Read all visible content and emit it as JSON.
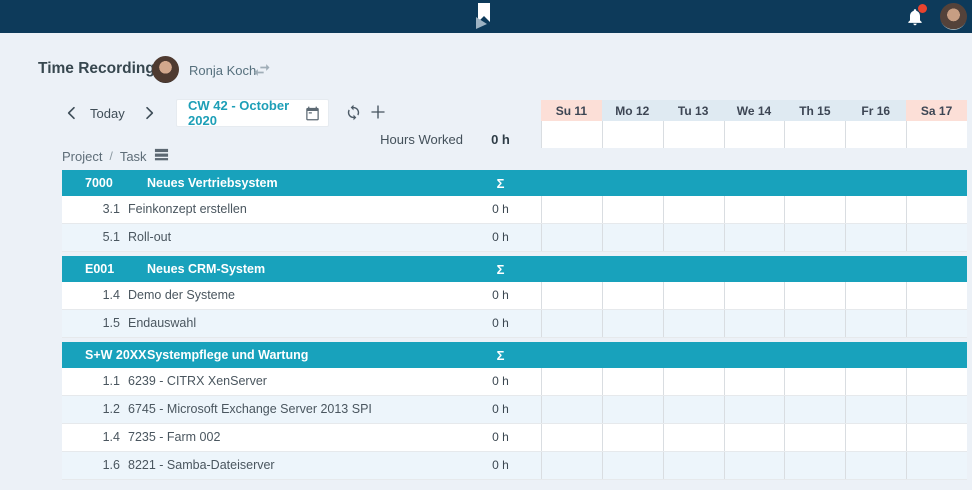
{
  "colors": {
    "topbar_bg": "#0d3a5a",
    "page_bg": "#ecf1f7",
    "accent_teal": "#18a2bc",
    "week_text_teal": "#1d9fb7",
    "weekend_bg": "#fcdfd7",
    "weekday_bg": "#dfeaf2",
    "row_stripe": "#edf5fb",
    "notification_red": "#e8432e"
  },
  "header": {
    "title": "Time Recording",
    "user_name": "Ronja Koch"
  },
  "toolbar": {
    "today_label": "Today",
    "week_selector_value": "CW 42 - October 2020"
  },
  "summary": {
    "hours_worked_label": "Hours Worked",
    "hours_worked_value": "0 h"
  },
  "grid": {
    "row_label": {
      "project": "Project",
      "separator": "/",
      "task": "Task"
    },
    "sum_symbol": "Σ",
    "days": [
      {
        "label": "Su 11",
        "weekend": true
      },
      {
        "label": "Mo 12",
        "weekend": false
      },
      {
        "label": "Tu 13",
        "weekend": false
      },
      {
        "label": "We 14",
        "weekend": false
      },
      {
        "label": "Th 15",
        "weekend": false
      },
      {
        "label": "Fr 16",
        "weekend": false
      },
      {
        "label": "Sa 17",
        "weekend": true
      }
    ],
    "sections": [
      {
        "code": "7000",
        "name": "Neues Vertriebsystem",
        "tasks": [
          {
            "number": "3.1",
            "name": "Feinkonzept erstellen",
            "hours": "0 h"
          },
          {
            "number": "5.1",
            "name": "Roll-out",
            "hours": "0 h"
          }
        ]
      },
      {
        "code": "E001",
        "name": "Neues CRM-System",
        "tasks": [
          {
            "number": "1.4",
            "name": "Demo der Systeme",
            "hours": "0 h"
          },
          {
            "number": "1.5",
            "name": "Endauswahl",
            "hours": "0 h"
          }
        ]
      },
      {
        "code": "S+W 20XX",
        "name": "Systempflege und Wartung",
        "tasks": [
          {
            "number": "1.1",
            "name": "6239 - CITRX XenServer",
            "hours": "0 h"
          },
          {
            "number": "1.2",
            "name": "6745 - Microsoft Exchange Server 2013 SPI",
            "hours": "0 h"
          },
          {
            "number": "1.4",
            "name": "7235 - Farm 002",
            "hours": "0 h"
          },
          {
            "number": "1.6",
            "name": "8221 - Samba-Dateiserver",
            "hours": "0 h"
          }
        ]
      }
    ]
  }
}
